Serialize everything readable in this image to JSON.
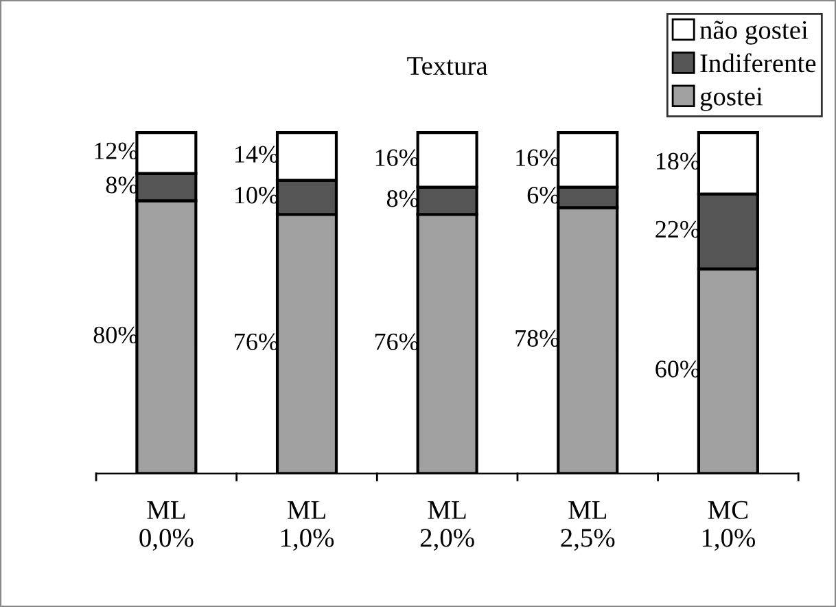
{
  "chart_data": {
    "type": "bar",
    "stacked": true,
    "title": "Textura",
    "categories": [
      "ML\n0,0%",
      "ML\n1,0%",
      "ML\n2,0%",
      "ML\n2,5%",
      "MC\n1,0%"
    ],
    "series": [
      {
        "name": "gostei",
        "color": "#a0a0a0",
        "values": [
          80,
          76,
          76,
          78,
          60
        ],
        "value_labels": [
          "80%",
          "76%",
          "76%",
          "78%",
          "60%"
        ]
      },
      {
        "name": "Indiferente",
        "color": "#555555",
        "values": [
          8,
          10,
          8,
          6,
          22
        ],
        "value_labels": [
          "8%",
          "10%",
          "8%",
          "6%",
          "22%"
        ]
      },
      {
        "name": "não gostei",
        "color": "#ffffff",
        "values": [
          12,
          14,
          16,
          16,
          18
        ],
        "value_labels": [
          "12%",
          "14%",
          "16%",
          "16%",
          "18%"
        ]
      }
    ],
    "legend": "top right",
    "grid": false
  }
}
